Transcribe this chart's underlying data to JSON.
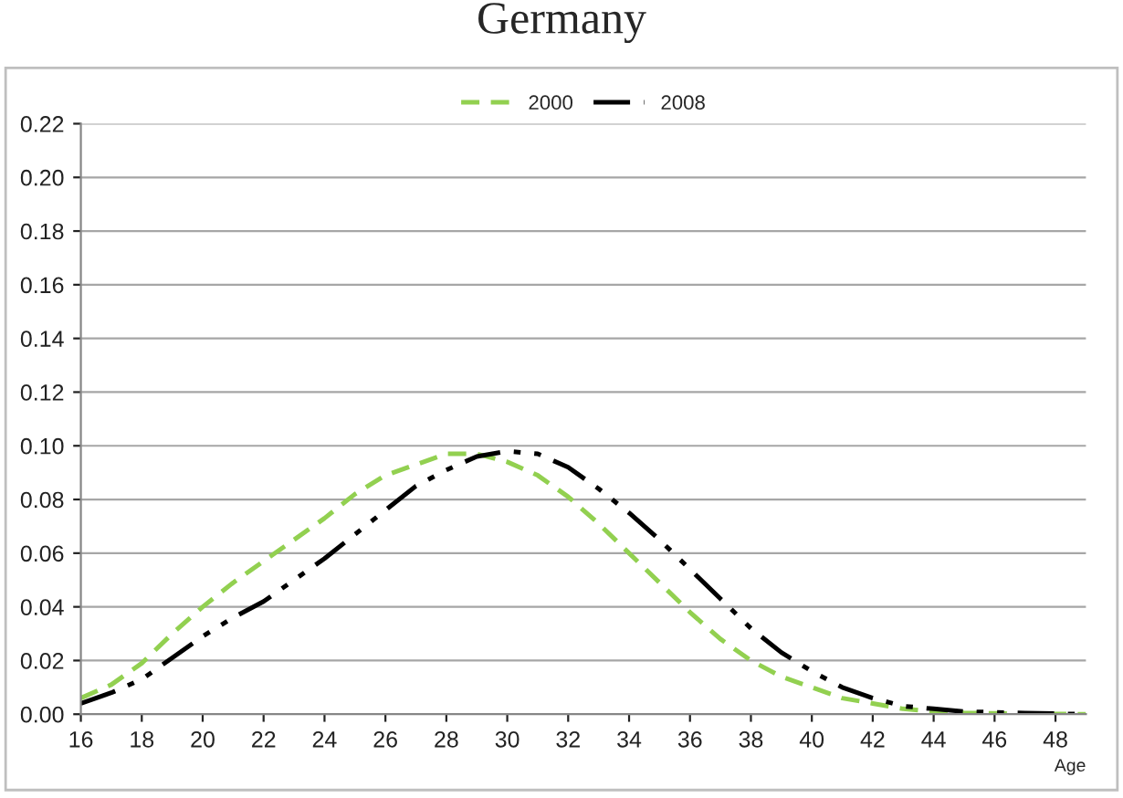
{
  "chart_data": {
    "type": "line",
    "title": "Germany",
    "xlabel": "Age",
    "x": [
      16,
      17,
      18,
      19,
      20,
      21,
      22,
      23,
      24,
      25,
      26,
      27,
      28,
      29,
      30,
      31,
      32,
      33,
      34,
      35,
      36,
      37,
      38,
      39,
      40,
      41,
      42,
      43,
      44,
      45,
      46,
      47,
      48,
      49
    ],
    "series": [
      {
        "name": "2000",
        "color": "#92d050",
        "line_style": "dashed",
        "values": [
          0.006,
          0.011,
          0.019,
          0.03,
          0.04,
          0.049,
          0.057,
          0.065,
          0.073,
          0.082,
          0.089,
          0.093,
          0.097,
          0.097,
          0.094,
          0.089,
          0.081,
          0.071,
          0.06,
          0.049,
          0.038,
          0.028,
          0.02,
          0.014,
          0.01,
          0.006,
          0.004,
          0.002,
          0.001,
          0.0005,
          0.0003,
          0.0002,
          0.0001,
          0.0
        ]
      },
      {
        "name": "2008",
        "color": "#000000",
        "line_style": "dashdot",
        "values": [
          0.004,
          0.008,
          0.013,
          0.021,
          0.029,
          0.036,
          0.042,
          0.05,
          0.058,
          0.067,
          0.076,
          0.085,
          0.091,
          0.096,
          0.098,
          0.097,
          0.092,
          0.084,
          0.075,
          0.065,
          0.054,
          0.043,
          0.032,
          0.023,
          0.016,
          0.01,
          0.006,
          0.003,
          0.002,
          0.001,
          0.0007,
          0.0004,
          0.0002,
          0.0
        ]
      }
    ],
    "xlim": [
      16,
      49
    ],
    "xticks": [
      16,
      18,
      20,
      22,
      24,
      26,
      28,
      30,
      32,
      34,
      36,
      38,
      40,
      42,
      44,
      46,
      48
    ],
    "ylim": [
      0,
      0.22
    ],
    "yticks": [
      {
        "value": 0,
        "label": "0.00"
      },
      {
        "value": 0.02,
        "label": "0.02"
      },
      {
        "value": 0.04,
        "label": "0.04"
      },
      {
        "value": 0.06,
        "label": "0.06"
      },
      {
        "value": 0.08,
        "label": "0.08"
      },
      {
        "value": 0.1,
        "label": "0.10"
      },
      {
        "value": 0.12,
        "label": "0.12"
      },
      {
        "value": 0.14,
        "label": "0.14"
      },
      {
        "value": 0.16,
        "label": "0.16"
      },
      {
        "value": 0.18,
        "label": "0.18"
      },
      {
        "value": 0.2,
        "label": "0.20"
      },
      {
        "value": 0.22,
        "label": "0.22"
      }
    ],
    "grid": "y",
    "legend": "top",
    "marker": "none"
  }
}
